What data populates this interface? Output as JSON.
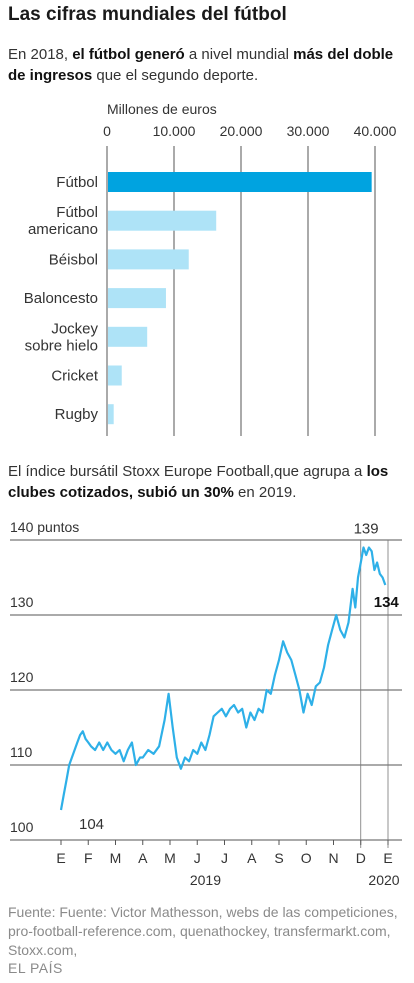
{
  "title": "Las cifras mundiales del fútbol",
  "intro1": {
    "a": "En 2018, ",
    "b": "el fútbol generó",
    "c": " a nivel mundial ",
    "d": "más del doble de ingresos",
    "e": " que el segundo deporte."
  },
  "intro2": {
    "a": "El índice bursátil Stoxx Europe Football,que agrupa a ",
    "b": "los clubes cotizados, subió un 30%",
    "c": " en 2019."
  },
  "source": "Fuente: Fuente: Victor Mathesson, webs de las competiciones, pro-football-reference.com, quenathockey, transfermarkt.com, Stoxx.com,",
  "brand": "EL PAÍS",
  "colors": {
    "highlight": "#00a3e0",
    "bars": "#aee3f7",
    "line": "#2eb0e8",
    "grid": "#555555"
  },
  "chart_data": [
    {
      "type": "bar",
      "orientation": "horizontal",
      "title": "",
      "xlabel": "Millones de euros",
      "xlim": [
        0,
        40000
      ],
      "ticks": [
        0,
        10000,
        20000,
        30000,
        40000
      ],
      "tick_labels": [
        "0",
        "10.000",
        "20.000",
        "30.000",
        "40.000"
      ],
      "grid": true,
      "categories": [
        [
          "Fútbol"
        ],
        [
          "Fútbol",
          "americano"
        ],
        [
          "Béisbol"
        ],
        [
          "Baloncesto"
        ],
        [
          "Jockey",
          "sobre hielo"
        ],
        [
          "Cricket"
        ],
        [
          "Rugby"
        ]
      ],
      "values": [
        39500,
        16300,
        12200,
        8800,
        6000,
        2200,
        1000
      ],
      "highlight_index": 0
    },
    {
      "type": "line",
      "title": "",
      "ylabel": "puntos",
      "ylim": [
        100,
        140
      ],
      "yticks": [
        100,
        110,
        120,
        130,
        140
      ],
      "ytick_labels": [
        "100",
        "110",
        "120",
        "130",
        "140 puntos"
      ],
      "x_month_labels": [
        "E",
        "F",
        "M",
        "A",
        "M",
        "J",
        "J",
        "A",
        "S",
        "O",
        "N",
        "D",
        "E"
      ],
      "x_year_labels": [
        "2019",
        "2020"
      ],
      "grid": true,
      "annotations": [
        {
          "label": "104",
          "x": 0,
          "y": 104
        },
        {
          "label": "139",
          "x": 11.05,
          "y": 139
        },
        {
          "label": "134",
          "x": 11.9,
          "y": 134,
          "bold": true
        }
      ],
      "x": [
        0,
        0.1,
        0.2,
        0.3,
        0.4,
        0.5,
        0.6,
        0.7,
        0.8,
        0.9,
        1.0,
        1.1,
        1.25,
        1.4,
        1.55,
        1.7,
        1.85,
        2.0,
        2.15,
        2.3,
        2.45,
        2.6,
        2.75,
        2.9,
        3.0,
        3.2,
        3.4,
        3.6,
        3.8,
        3.95,
        4.1,
        4.25,
        4.4,
        4.55,
        4.7,
        4.85,
        5.0,
        5.15,
        5.3,
        5.45,
        5.6,
        5.75,
        5.9,
        6.05,
        6.2,
        6.35,
        6.5,
        6.65,
        6.8,
        6.95,
        7.1,
        7.25,
        7.4,
        7.55,
        7.7,
        7.85,
        8.0,
        8.15,
        8.3,
        8.45,
        8.6,
        8.75,
        8.9,
        9.05,
        9.2,
        9.35,
        9.5,
        9.65,
        9.8,
        9.95,
        10.1,
        10.25,
        10.4,
        10.55,
        10.7,
        10.8,
        10.9,
        11.0,
        11.1,
        11.2,
        11.3,
        11.4,
        11.5,
        11.6,
        11.7,
        11.8,
        11.9
      ],
      "y": [
        104,
        106,
        108,
        110,
        111,
        112,
        113,
        114,
        114.5,
        113.5,
        113,
        112.5,
        112,
        113,
        112,
        113,
        112,
        111.5,
        112,
        110.5,
        112,
        113,
        110,
        111,
        111,
        112,
        111.5,
        112.5,
        116,
        119.5,
        115,
        111,
        109.5,
        111,
        110.5,
        112,
        111.5,
        113,
        112,
        114,
        116.5,
        117,
        117.5,
        116.5,
        117.5,
        118,
        117,
        117.5,
        115,
        117,
        116,
        117.5,
        117,
        120,
        119.5,
        122,
        124,
        126.5,
        125,
        124,
        122,
        120,
        117,
        119.5,
        118,
        120.5,
        121,
        123,
        126,
        128,
        130,
        128,
        127,
        129,
        133.5,
        131,
        135,
        137,
        139,
        138,
        139,
        138.5,
        136,
        137,
        135.5,
        135,
        134
      ]
    }
  ]
}
